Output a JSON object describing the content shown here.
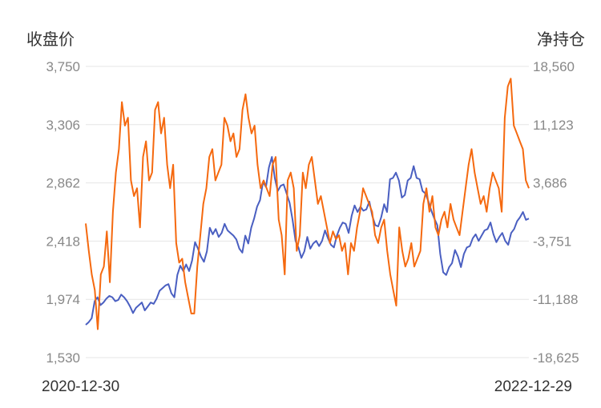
{
  "chart_data": {
    "type": "line",
    "title": "",
    "left_axis": {
      "title": "收盘价",
      "range": [
        1530,
        3750
      ],
      "ticks": [
        "3,750",
        "3,306",
        "2,862",
        "2,418",
        "1,974",
        "1,530"
      ]
    },
    "right_axis": {
      "title": "净持仓",
      "range": [
        -18625,
        18560
      ],
      "ticks": [
        "18,560",
        "11,123",
        "3,686",
        "-3,751",
        "-11,188",
        "-18,625"
      ]
    },
    "x_range": {
      "start": "2020-12-30",
      "end": "2022-12-29"
    },
    "grid": true,
    "legend": "none",
    "series": [
      {
        "axis": "left",
        "color": "#4a5fc1",
        "values": [
          1780,
          1800,
          1830,
          1960,
          1990,
          1930,
          1950,
          1980,
          2000,
          1990,
          1960,
          1970,
          2010,
          1990,
          1960,
          1920,
          1870,
          1910,
          1930,
          1950,
          1890,
          1920,
          1950,
          1940,
          1980,
          2040,
          2060,
          2080,
          2090,
          2020,
          1990,
          2160,
          2230,
          2190,
          2240,
          2190,
          2270,
          2410,
          2360,
          2300,
          2260,
          2340,
          2520,
          2470,
          2510,
          2450,
          2480,
          2550,
          2500,
          2480,
          2460,
          2430,
          2360,
          2330,
          2460,
          2400,
          2520,
          2590,
          2680,
          2730,
          2870,
          2830,
          2980,
          3060,
          2900,
          2800,
          2840,
          2850,
          2780,
          2710,
          2580,
          2420,
          2370,
          2290,
          2340,
          2450,
          2360,
          2400,
          2420,
          2380,
          2420,
          2500,
          2440,
          2390,
          2370,
          2460,
          2520,
          2560,
          2550,
          2480,
          2610,
          2690,
          2640,
          2680,
          2650,
          2660,
          2720,
          2610,
          2540,
          2530,
          2600,
          2700,
          2640,
          2890,
          2900,
          2940,
          2880,
          2750,
          2770,
          2880,
          2900,
          2990,
          2900,
          2890,
          2800,
          2780,
          2720,
          2650,
          2590,
          2540,
          2320,
          2180,
          2160,
          2220,
          2250,
          2350,
          2300,
          2220,
          2320,
          2370,
          2380,
          2440,
          2470,
          2420,
          2460,
          2500,
          2510,
          2560,
          2470,
          2410,
          2450,
          2480,
          2420,
          2390,
          2480,
          2510,
          2570,
          2600,
          2640,
          2580,
          2590
        ]
      },
      {
        "axis": "right",
        "color": "#f5690f",
        "values": [
          -1500,
          -5000,
          -8000,
          -10000,
          -15000,
          -8000,
          -7000,
          -2500,
          -9000,
          0,
          5000,
          8000,
          14000,
          11000,
          12000,
          4000,
          2000,
          3000,
          -2000,
          7000,
          9000,
          4000,
          5000,
          13000,
          14000,
          10000,
          12000,
          6000,
          3000,
          6000,
          -4000,
          -6500,
          -6000,
          -9000,
          -11000,
          -13000,
          -13000,
          -7000,
          -3000,
          1000,
          3000,
          7000,
          8000,
          4000,
          5000,
          6000,
          12000,
          11000,
          9000,
          10000,
          7000,
          8000,
          13000,
          15000,
          12000,
          10000,
          11000,
          6000,
          3000,
          4000,
          3000,
          2000,
          6000,
          7000,
          -1000,
          -3000,
          -8000,
          4000,
          5000,
          3000,
          -5000,
          -3000,
          5000,
          3000,
          6000,
          7000,
          4000,
          1000,
          2000,
          0,
          -2000,
          -4000,
          -2500,
          -3500,
          -3000,
          -5000,
          -4000,
          -8000,
          -4000,
          -5000,
          -2000,
          0,
          3000,
          2000,
          1000,
          0,
          -3000,
          -4000,
          -2000,
          -1000,
          -5000,
          -8000,
          -10000,
          -12000,
          -2000,
          -5000,
          -7000,
          -6000,
          -4000,
          -7000,
          -6000,
          -5000,
          1000,
          3000,
          0,
          2000,
          -2000,
          -3000,
          -1000,
          0,
          -2000,
          1000,
          -1000,
          -2000,
          -3000,
          0,
          3000,
          6000,
          8000,
          5000,
          3000,
          1000,
          2000,
          0,
          3000,
          5000,
          4000,
          3000,
          0,
          12000,
          16000,
          17000,
          11000,
          10000,
          9000,
          8000,
          4000,
          3000
        ]
      }
    ]
  }
}
